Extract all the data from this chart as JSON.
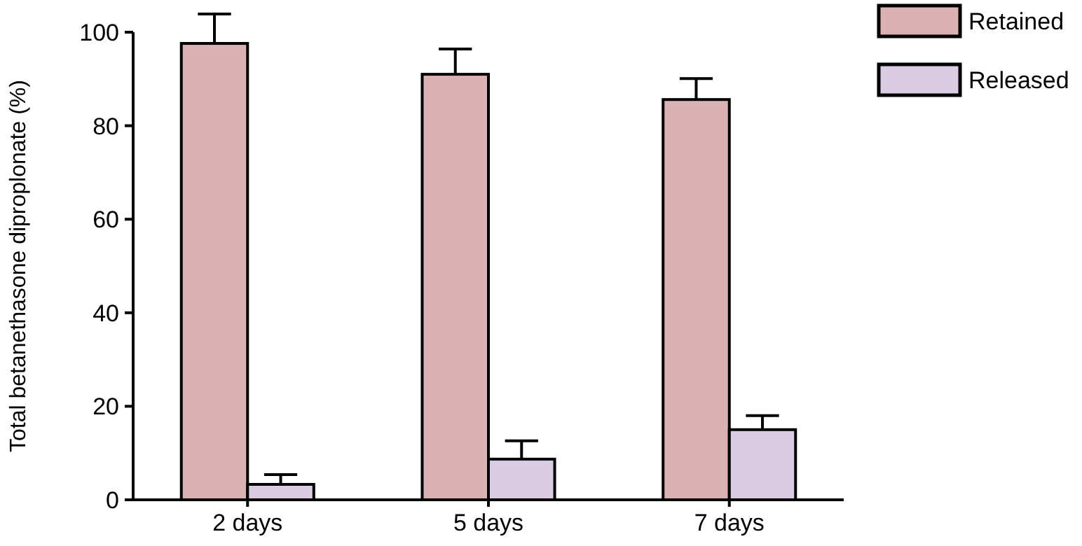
{
  "chart_data": {
    "type": "bar",
    "ylabel": "Total betanethasone diproplonate (%)",
    "categories": [
      "2 days",
      "5 days",
      "7 days"
    ],
    "series": [
      {
        "name": "Retained",
        "color": "#dbb2b4",
        "values": [
          97.6,
          91.0,
          85.6
        ],
        "errors": [
          6.3,
          5.4,
          4.5
        ]
      },
      {
        "name": "Released",
        "color": "#d9cce3",
        "values": [
          3.3,
          8.7,
          15.0
        ],
        "errors": [
          2.1,
          3.9,
          3.0
        ]
      }
    ],
    "ylim": [
      0,
      100
    ],
    "yticks": [
      0,
      20,
      40,
      60,
      80,
      100
    ],
    "grid": false,
    "legend": "top right"
  }
}
